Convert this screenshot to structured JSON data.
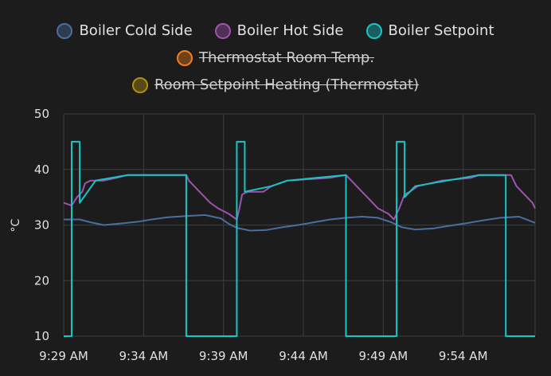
{
  "chart_data": {
    "type": "line",
    "ylabel": "°C",
    "ylim": [
      10,
      50
    ],
    "yticks": [
      10,
      20,
      30,
      40,
      50
    ],
    "xticks": [
      "9:29 AM",
      "9:34 AM",
      "9:39 AM",
      "9:44 AM",
      "9:49 AM",
      "9:54 AM"
    ],
    "xlim": [
      "9:29 AM",
      "9:58:30 AM"
    ],
    "grid": true,
    "legend_position": "top-center",
    "series": [
      {
        "name": "Boiler Cold Side",
        "color": "#4a6ea0",
        "visible": true,
        "points": [
          [
            "9:29:00",
            31.0
          ],
          [
            "9:30:00",
            31.0
          ],
          [
            "9:30:40",
            30.5
          ],
          [
            "9:31:30",
            30.0
          ],
          [
            "9:32:40",
            30.3
          ],
          [
            "9:33:40",
            30.6
          ],
          [
            "9:34:30",
            31.0
          ],
          [
            "9:35:30",
            31.4
          ],
          [
            "9:36:40",
            31.6
          ],
          [
            "9:37:50",
            31.8
          ],
          [
            "9:38:50",
            31.2
          ],
          [
            "9:39:20",
            30.2
          ],
          [
            "9:39:50",
            29.5
          ],
          [
            "9:40:40",
            29.0
          ],
          [
            "9:41:40",
            29.1
          ],
          [
            "9:42:40",
            29.6
          ],
          [
            "9:43:40",
            30.0
          ],
          [
            "9:44:40",
            30.5
          ],
          [
            "9:45:40",
            31.0
          ],
          [
            "9:46:40",
            31.3
          ],
          [
            "9:47:40",
            31.5
          ],
          [
            "9:48:40",
            31.3
          ],
          [
            "9:49:30",
            30.5
          ],
          [
            "9:50:10",
            29.6
          ],
          [
            "9:51:00",
            29.2
          ],
          [
            "9:52:10",
            29.4
          ],
          [
            "9:53:00",
            29.8
          ],
          [
            "9:54:10",
            30.3
          ],
          [
            "9:55:10",
            30.8
          ],
          [
            "9:56:20",
            31.3
          ],
          [
            "9:57:30",
            31.5
          ],
          [
            "9:58:30",
            30.4
          ]
        ]
      },
      {
        "name": "Boiler Hot Side",
        "color": "#a052b0",
        "visible": true,
        "points": [
          [
            "9:29:00",
            34.0
          ],
          [
            "9:29:30",
            33.5
          ],
          [
            "9:29:50",
            35.0
          ],
          [
            "9:30:10",
            36.0
          ],
          [
            "9:30:20",
            37.5
          ],
          [
            "9:30:40",
            38.0
          ],
          [
            "9:31:30",
            38.0
          ],
          [
            "9:32:20",
            38.5
          ],
          [
            "9:33:00",
            39.0
          ],
          [
            "9:36:40",
            39.0
          ],
          [
            "9:36:50",
            38.0
          ],
          [
            "9:37:10",
            37.0
          ],
          [
            "9:37:30",
            36.0
          ],
          [
            "9:37:50",
            35.0
          ],
          [
            "9:38:10",
            34.0
          ],
          [
            "9:38:40",
            33.0
          ],
          [
            "9:39:20",
            32.0
          ],
          [
            "9:39:50",
            31.0
          ],
          [
            "9:40:00",
            33.0
          ],
          [
            "9:40:10",
            35.5
          ],
          [
            "9:40:30",
            36.0
          ],
          [
            "9:41:30",
            36.0
          ],
          [
            "9:42:00",
            37.0
          ],
          [
            "9:43:00",
            38.0
          ],
          [
            "9:45:40",
            38.5
          ],
          [
            "9:46:40",
            39.0
          ],
          [
            "9:47:00",
            38.0
          ],
          [
            "9:47:20",
            37.0
          ],
          [
            "9:47:40",
            36.0
          ],
          [
            "9:48:00",
            35.0
          ],
          [
            "9:48:20",
            34.0
          ],
          [
            "9:48:40",
            33.0
          ],
          [
            "9:49:20",
            32.0
          ],
          [
            "9:49:40",
            31.0
          ],
          [
            "9:50:00",
            33.0
          ],
          [
            "9:50:20",
            35.5
          ],
          [
            "9:50:40",
            36.0
          ],
          [
            "9:51:10",
            37.0
          ],
          [
            "9:52:40",
            38.0
          ],
          [
            "9:54:30",
            38.5
          ],
          [
            "9:55:00",
            39.0
          ],
          [
            "9:57:00",
            39.0
          ],
          [
            "9:57:10",
            38.0
          ],
          [
            "9:57:20",
            37.0
          ],
          [
            "9:57:40",
            36.0
          ],
          [
            "9:58:00",
            35.0
          ],
          [
            "9:58:20",
            34.0
          ],
          [
            "9:58:30",
            33.0
          ]
        ]
      },
      {
        "name": "Boiler Setpoint",
        "color": "#17c5c5",
        "visible": true,
        "points": [
          [
            "9:29:00",
            10
          ],
          [
            "9:29:30",
            10
          ],
          [
            "9:29:30",
            45
          ],
          [
            "9:30:00",
            45
          ],
          [
            "9:30:00",
            34
          ],
          [
            "9:31:00",
            38
          ],
          [
            "9:33:00",
            39
          ],
          [
            "9:36:40",
            39
          ],
          [
            "9:36:40",
            10
          ],
          [
            "9:39:50",
            10
          ],
          [
            "9:39:50",
            45
          ],
          [
            "9:40:20",
            45
          ],
          [
            "9:40:20",
            36
          ],
          [
            "9:42:00",
            37
          ],
          [
            "9:43:00",
            38
          ],
          [
            "9:46:40",
            39
          ],
          [
            "9:46:40",
            10
          ],
          [
            "9:49:50",
            10
          ],
          [
            "9:49:50",
            45
          ],
          [
            "9:50:20",
            45
          ],
          [
            "9:50:20",
            35
          ],
          [
            "9:51:00",
            37
          ],
          [
            "9:53:00",
            38
          ],
          [
            "9:55:00",
            39
          ],
          [
            "9:56:40",
            39
          ],
          [
            "9:56:40",
            10
          ],
          [
            "9:58:30",
            10
          ]
        ]
      },
      {
        "name": "Thermostat Room Temp.",
        "color": "#f07d1e",
        "visible": false,
        "points": []
      },
      {
        "name": "Room Setpoint Heating (Thermostat)",
        "color": "#b0900e",
        "visible": false,
        "points": []
      }
    ]
  }
}
